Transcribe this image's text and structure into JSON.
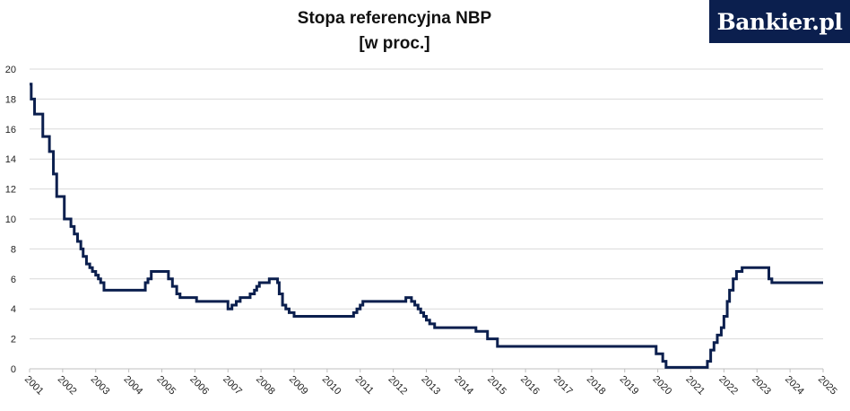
{
  "header": {
    "title": "Stopa referencyjna NBP",
    "subtitle": "[w proc.]",
    "logo_text": "Bankier.pl"
  },
  "colors": {
    "line": "#0b1f4e",
    "grid": "#d9d9d9",
    "axis": "#bfbfbf",
    "logo_bg": "#0b1f4e"
  },
  "chart_data": {
    "type": "line",
    "title": "Stopa referencyjna NBP",
    "subtitle": "[w proc.]",
    "xlabel": "",
    "ylabel": "",
    "ylim": [
      0,
      20
    ],
    "xlim": [
      2001.0,
      2025.0
    ],
    "yticks": [
      0,
      2,
      4,
      6,
      8,
      10,
      12,
      14,
      16,
      18,
      20
    ],
    "xticks": [
      "2001",
      "2002",
      "2003",
      "2004",
      "2005",
      "2006",
      "2007",
      "2008",
      "2009",
      "2010",
      "2011",
      "2012",
      "2013",
      "2014",
      "2015",
      "2016",
      "2017",
      "2018",
      "2019",
      "2020",
      "2021",
      "2022",
      "2023",
      "2024",
      "2025"
    ],
    "grid": true,
    "legend": "none",
    "step": true,
    "series": [
      {
        "x": [
          2001.0,
          2001.05,
          2001.15,
          2001.4,
          2001.6,
          2001.72,
          2001.82,
          2002.05,
          2002.15,
          2002.25,
          2002.35,
          2002.45,
          2002.55,
          2002.62,
          2002.72,
          2002.82,
          2002.9,
          2003.0,
          2003.08,
          2003.15,
          2003.25,
          2004.5,
          2004.58,
          2004.68,
          2005.2,
          2005.32,
          2005.45,
          2005.55,
          2006.05,
          2007.0,
          2007.12,
          2007.25,
          2007.37,
          2007.67,
          2007.8,
          2007.87,
          2007.95,
          2008.25,
          2008.5,
          2008.55,
          2008.65,
          2008.75,
          2008.85,
          2009.0,
          2010.7,
          2010.8,
          2010.9,
          2011.0,
          2011.08,
          2012.0,
          2012.38,
          2012.55,
          2012.65,
          2012.75,
          2012.83,
          2012.92,
          2013.0,
          2013.1,
          2013.25,
          2014.5,
          2014.85,
          2015.15,
          2019.95,
          2020.15,
          2020.25,
          2020.4,
          2021.4,
          2021.5,
          2021.6,
          2021.7,
          2021.8,
          2021.92,
          2022.0,
          2022.1,
          2022.17,
          2022.28,
          2022.38,
          2022.45,
          2022.55,
          2022.68,
          2023.0,
          2023.3,
          2023.36,
          2023.45,
          2025.0
        ],
        "values": [
          19.0,
          18.0,
          17.0,
          15.5,
          14.5,
          13.0,
          11.5,
          10.0,
          10.0,
          9.5,
          9.0,
          8.5,
          8.0,
          7.5,
          7.0,
          6.75,
          6.5,
          6.25,
          6.0,
          5.75,
          5.25,
          5.75,
          6.0,
          6.5,
          6.0,
          5.5,
          5.0,
          4.75,
          4.5,
          4.0,
          4.25,
          4.5,
          4.75,
          5.0,
          5.25,
          5.5,
          5.75,
          6.0,
          5.75,
          5.0,
          4.25,
          4.0,
          3.75,
          3.5,
          3.5,
          3.75,
          4.0,
          4.25,
          4.5,
          4.5,
          4.75,
          4.5,
          4.25,
          4.0,
          3.75,
          3.5,
          3.25,
          3.0,
          2.75,
          2.5,
          2.0,
          1.5,
          1.0,
          0.5,
          0.1,
          0.1,
          0.1,
          0.5,
          1.25,
          1.75,
          2.25,
          2.75,
          3.5,
          4.5,
          5.25,
          6.0,
          6.5,
          6.5,
          6.75,
          6.75,
          6.75,
          6.75,
          6.0,
          5.75,
          5.75
        ]
      }
    ]
  }
}
